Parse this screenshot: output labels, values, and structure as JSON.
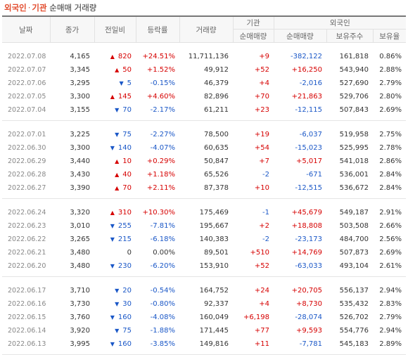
{
  "title": {
    "foreign": "외국인",
    "dot": "·",
    "inst": "기관",
    "rest": "순매매 거래량"
  },
  "headers": {
    "date": "날짜",
    "close": "종가",
    "change": "전일비",
    "rate": "등락률",
    "volume": "거래량",
    "inst_group": "기관",
    "foreign_group": "외국인",
    "inst_net": "순매매량",
    "foreign_net": "순매매량",
    "holdings": "보유주수",
    "holding_rate": "보유율"
  },
  "groups": [
    {
      "rows": [
        {
          "date": "2022.07.08",
          "close": "4,165",
          "dir": "up",
          "change": "820",
          "rate": "+24.51%",
          "volume": "11,711,136",
          "inst": "+9",
          "foreign": "-382,122",
          "holdings": "161,818",
          "holding_rate": "0.86%"
        },
        {
          "date": "2022.07.07",
          "close": "3,345",
          "dir": "up",
          "change": "50",
          "rate": "+1.52%",
          "volume": "49,912",
          "inst": "+52",
          "foreign": "+16,250",
          "holdings": "543,940",
          "holding_rate": "2.88%"
        },
        {
          "date": "2022.07.06",
          "close": "3,295",
          "dir": "dn",
          "change": "5",
          "rate": "-0.15%",
          "volume": "46,379",
          "inst": "+4",
          "foreign": "-2,016",
          "holdings": "527,690",
          "holding_rate": "2.79%"
        },
        {
          "date": "2022.07.05",
          "close": "3,300",
          "dir": "up",
          "change": "145",
          "rate": "+4.60%",
          "volume": "82,896",
          "inst": "+70",
          "foreign": "+21,863",
          "holdings": "529,706",
          "holding_rate": "2.80%"
        },
        {
          "date": "2022.07.04",
          "close": "3,155",
          "dir": "dn",
          "change": "70",
          "rate": "-2.17%",
          "volume": "61,211",
          "inst": "+23",
          "foreign": "-12,115",
          "holdings": "507,843",
          "holding_rate": "2.69%"
        }
      ]
    },
    {
      "rows": [
        {
          "date": "2022.07.01",
          "close": "3,225",
          "dir": "dn",
          "change": "75",
          "rate": "-2.27%",
          "volume": "78,500",
          "inst": "+19",
          "foreign": "-6,037",
          "holdings": "519,958",
          "holding_rate": "2.75%"
        },
        {
          "date": "2022.06.30",
          "close": "3,300",
          "dir": "dn",
          "change": "140",
          "rate": "-4.07%",
          "volume": "60,635",
          "inst": "+54",
          "foreign": "-15,023",
          "holdings": "525,995",
          "holding_rate": "2.78%"
        },
        {
          "date": "2022.06.29",
          "close": "3,440",
          "dir": "up",
          "change": "10",
          "rate": "+0.29%",
          "volume": "50,847",
          "inst": "+7",
          "foreign": "+5,017",
          "holdings": "541,018",
          "holding_rate": "2.86%"
        },
        {
          "date": "2022.06.28",
          "close": "3,430",
          "dir": "up",
          "change": "40",
          "rate": "+1.18%",
          "volume": "65,526",
          "inst": "-2",
          "foreign": "-671",
          "holdings": "536,001",
          "holding_rate": "2.84%"
        },
        {
          "date": "2022.06.27",
          "close": "3,390",
          "dir": "up",
          "change": "70",
          "rate": "+2.11%",
          "volume": "87,378",
          "inst": "+10",
          "foreign": "-12,515",
          "holdings": "536,672",
          "holding_rate": "2.84%"
        }
      ]
    },
    {
      "rows": [
        {
          "date": "2022.06.24",
          "close": "3,320",
          "dir": "up",
          "change": "310",
          "rate": "+10.30%",
          "volume": "175,469",
          "inst": "-1",
          "foreign": "+45,679",
          "holdings": "549,187",
          "holding_rate": "2.91%"
        },
        {
          "date": "2022.06.23",
          "close": "3,010",
          "dir": "dn",
          "change": "255",
          "rate": "-7.81%",
          "volume": "195,667",
          "inst": "+2",
          "foreign": "+18,808",
          "holdings": "503,508",
          "holding_rate": "2.66%"
        },
        {
          "date": "2022.06.22",
          "close": "3,265",
          "dir": "dn",
          "change": "215",
          "rate": "-6.18%",
          "volume": "140,383",
          "inst": "-2",
          "foreign": "-23,173",
          "holdings": "484,700",
          "holding_rate": "2.56%"
        },
        {
          "date": "2022.06.21",
          "close": "3,480",
          "dir": "nc",
          "change": "0",
          "rate": "0.00%",
          "volume": "89,501",
          "inst": "+510",
          "foreign": "+14,769",
          "holdings": "507,873",
          "holding_rate": "2.69%"
        },
        {
          "date": "2022.06.20",
          "close": "3,480",
          "dir": "dn",
          "change": "230",
          "rate": "-6.20%",
          "volume": "153,910",
          "inst": "+52",
          "foreign": "-63,033",
          "holdings": "493,104",
          "holding_rate": "2.61%"
        }
      ]
    },
    {
      "rows": [
        {
          "date": "2022.06.17",
          "close": "3,710",
          "dir": "dn",
          "change": "20",
          "rate": "-0.54%",
          "volume": "164,752",
          "inst": "+24",
          "foreign": "+20,705",
          "holdings": "556,137",
          "holding_rate": "2.94%"
        },
        {
          "date": "2022.06.16",
          "close": "3,730",
          "dir": "dn",
          "change": "30",
          "rate": "-0.80%",
          "volume": "92,337",
          "inst": "+4",
          "foreign": "+8,730",
          "holdings": "535,432",
          "holding_rate": "2.83%"
        },
        {
          "date": "2022.06.15",
          "close": "3,760",
          "dir": "dn",
          "change": "160",
          "rate": "-4.08%",
          "volume": "160,049",
          "inst": "+6,198",
          "foreign": "-28,074",
          "holdings": "526,702",
          "holding_rate": "2.79%"
        },
        {
          "date": "2022.06.14",
          "close": "3,920",
          "dir": "dn",
          "change": "75",
          "rate": "-1.88%",
          "volume": "171,445",
          "inst": "+77",
          "foreign": "+9,593",
          "holdings": "554,776",
          "holding_rate": "2.94%"
        },
        {
          "date": "2022.06.13",
          "close": "3,995",
          "dir": "dn",
          "change": "160",
          "rate": "-3.85%",
          "volume": "149,816",
          "inst": "+11",
          "foreign": "-7,781",
          "holdings": "545,183",
          "holding_rate": "2.89%"
        }
      ]
    }
  ],
  "colors": {
    "up": "#d60000",
    "down": "#1a57c7",
    "accent": "#e24a2b"
  },
  "icons": {
    "up": "triangle-up-icon",
    "down": "triangle-down-icon"
  }
}
